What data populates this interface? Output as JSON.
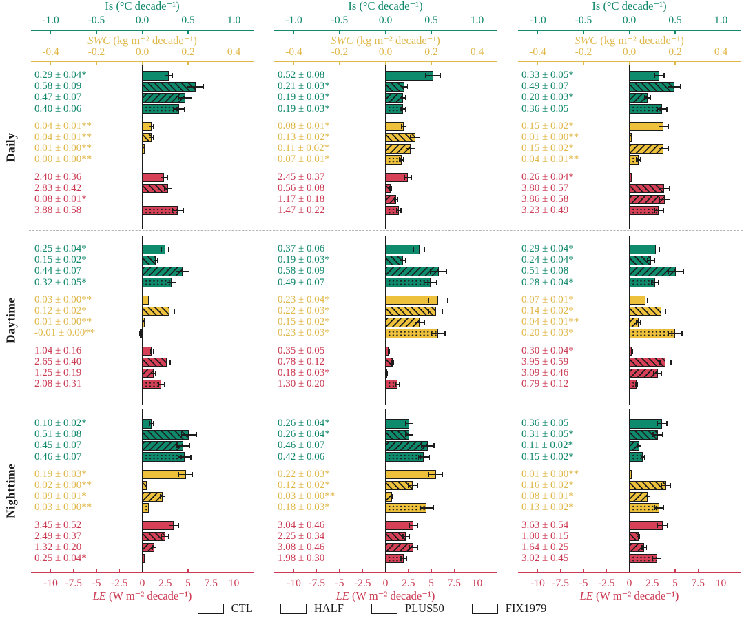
{
  "chart_data": {
    "type": "bar",
    "orientation": "horizontal",
    "grid": "3 rows x 3 columns of panels",
    "row_labels": [
      "Daily",
      "Daytime",
      "Nighttime"
    ],
    "legend": {
      "position": "bottom",
      "entries": [
        "CTL",
        "HALF",
        "PLUS50",
        "FIX1979"
      ],
      "hatches": {
        "CTL": "solid",
        "HALF": "forward-diagonal",
        "PLUS50": "backward-diagonal",
        "FIX1979": "dots"
      }
    },
    "value_label_format": "value ± error with significance stars",
    "axes": [
      {
        "key": "Is",
        "var": "Is",
        "italic": false,
        "unit": "(°C decade⁻¹)",
        "position": "top",
        "color": "#11886c",
        "bar_color": "#0e8b6d",
        "tick_labels": [
          "-1.0",
          "-0.5",
          "0.0",
          "0.5",
          "1.0"
        ],
        "tick_values": [
          -1.0,
          -0.5,
          0.0,
          0.5,
          1.0
        ],
        "scale_max": 1.0
      },
      {
        "key": "SWC",
        "var": "SWC",
        "italic": true,
        "unit": "(kg m⁻² decade⁻¹)",
        "position": "top",
        "color": "#e0b84a",
        "bar_color": "#edc13c",
        "tick_labels": [
          "-0.4",
          "-0.2",
          "0.0",
          "0.2",
          "0.4"
        ],
        "tick_values": [
          -0.4,
          -0.2,
          0.0,
          0.2,
          0.4
        ],
        "scale_max": 0.4
      },
      {
        "key": "LE",
        "var": "LE",
        "italic": true,
        "unit": "(W m⁻² decade⁻¹)",
        "position": "bottom",
        "color": "#cb3a53",
        "bar_color": "#d64158",
        "tick_labels": [
          "-10",
          "-7.5",
          "-5",
          "-2.5",
          "0",
          "2.5",
          "5",
          "7.5",
          "10"
        ],
        "tick_values": [
          -10,
          -7.5,
          -5,
          -2.5,
          0,
          2.5,
          5,
          7.5,
          10
        ],
        "scale_max": 10
      }
    ],
    "panels": [
      {
        "row": "Daily",
        "col": 1,
        "groups": {
          "Is": [
            [
              0.29,
              0.04,
              "*"
            ],
            [
              0.58,
              0.09,
              ""
            ],
            [
              0.47,
              0.07,
              ""
            ],
            [
              0.4,
              0.06,
              ""
            ]
          ],
          "SWC": [
            [
              0.04,
              0.01,
              "**"
            ],
            [
              0.04,
              0.01,
              "**"
            ],
            [
              0.01,
              0.0,
              "**"
            ],
            [
              0.0,
              0.0,
              "**"
            ]
          ],
          "LE": [
            [
              2.4,
              0.36,
              ""
            ],
            [
              2.83,
              0.42,
              ""
            ],
            [
              0.08,
              0.01,
              "*"
            ],
            [
              3.88,
              0.58,
              ""
            ]
          ]
        }
      },
      {
        "row": "Daily",
        "col": 2,
        "groups": {
          "Is": [
            [
              0.52,
              0.08,
              ""
            ],
            [
              0.21,
              0.03,
              "*"
            ],
            [
              0.19,
              0.03,
              "*"
            ],
            [
              0.19,
              0.03,
              "*"
            ]
          ],
          "SWC": [
            [
              0.08,
              0.01,
              "*"
            ],
            [
              0.13,
              0.02,
              "*"
            ],
            [
              0.11,
              0.02,
              "*"
            ],
            [
              0.07,
              0.01,
              "*"
            ]
          ],
          "LE": [
            [
              2.45,
              0.37,
              ""
            ],
            [
              0.56,
              0.08,
              ""
            ],
            [
              1.17,
              0.18,
              ""
            ],
            [
              1.47,
              0.22,
              ""
            ]
          ]
        }
      },
      {
        "row": "Daily",
        "col": 3,
        "groups": {
          "Is": [
            [
              0.33,
              0.05,
              "*"
            ],
            [
              0.49,
              0.07,
              ""
            ],
            [
              0.2,
              0.03,
              "*"
            ],
            [
              0.36,
              0.05,
              ""
            ]
          ],
          "SWC": [
            [
              0.15,
              0.02,
              "*"
            ],
            [
              0.01,
              0.0,
              "**"
            ],
            [
              0.15,
              0.02,
              "*"
            ],
            [
              0.04,
              0.01,
              "**"
            ]
          ],
          "LE": [
            [
              0.26,
              0.04,
              "*"
            ],
            [
              3.8,
              0.57,
              ""
            ],
            [
              3.86,
              0.58,
              ""
            ],
            [
              3.23,
              0.49,
              ""
            ]
          ]
        }
      },
      {
        "row": "Daytime",
        "col": 1,
        "groups": {
          "Is": [
            [
              0.25,
              0.04,
              "*"
            ],
            [
              0.15,
              0.02,
              "*"
            ],
            [
              0.44,
              0.07,
              ""
            ],
            [
              0.32,
              0.05,
              "*"
            ]
          ],
          "SWC": [
            [
              0.03,
              0.0,
              "**"
            ],
            [
              0.12,
              0.02,
              "*"
            ],
            [
              0.01,
              0.0,
              "**"
            ],
            [
              -0.01,
              0.0,
              "**"
            ]
          ],
          "LE": [
            [
              1.04,
              0.16,
              ""
            ],
            [
              2.65,
              0.4,
              ""
            ],
            [
              1.25,
              0.19,
              ""
            ],
            [
              2.08,
              0.31,
              ""
            ]
          ]
        }
      },
      {
        "row": "Daytime",
        "col": 2,
        "groups": {
          "Is": [
            [
              0.37,
              0.06,
              ""
            ],
            [
              0.19,
              0.03,
              "*"
            ],
            [
              0.58,
              0.09,
              ""
            ],
            [
              0.49,
              0.07,
              ""
            ]
          ],
          "SWC": [
            [
              0.23,
              0.04,
              "*"
            ],
            [
              0.22,
              0.03,
              "*"
            ],
            [
              0.15,
              0.02,
              "*"
            ],
            [
              0.23,
              0.03,
              "*"
            ]
          ],
          "LE": [
            [
              0.35,
              0.05,
              ""
            ],
            [
              0.78,
              0.12,
              ""
            ],
            [
              0.18,
              0.03,
              "*"
            ],
            [
              1.3,
              0.2,
              ""
            ]
          ]
        }
      },
      {
        "row": "Daytime",
        "col": 3,
        "groups": {
          "Is": [
            [
              0.29,
              0.04,
              "*"
            ],
            [
              0.24,
              0.04,
              "*"
            ],
            [
              0.51,
              0.08,
              ""
            ],
            [
              0.28,
              0.04,
              "*"
            ]
          ],
          "SWC": [
            [
              0.07,
              0.01,
              "*"
            ],
            [
              0.14,
              0.02,
              "*"
            ],
            [
              0.04,
              0.01,
              "**"
            ],
            [
              0.2,
              0.03,
              "*"
            ]
          ],
          "LE": [
            [
              0.3,
              0.04,
              "*"
            ],
            [
              3.95,
              0.59,
              ""
            ],
            [
              3.09,
              0.46,
              ""
            ],
            [
              0.79,
              0.12,
              ""
            ]
          ]
        }
      },
      {
        "row": "Nighttime",
        "col": 1,
        "groups": {
          "Is": [
            [
              0.1,
              0.02,
              "*"
            ],
            [
              0.51,
              0.08,
              ""
            ],
            [
              0.45,
              0.07,
              ""
            ],
            [
              0.46,
              0.07,
              ""
            ]
          ],
          "SWC": [
            [
              0.19,
              0.03,
              "*"
            ],
            [
              0.02,
              0.0,
              "**"
            ],
            [
              0.09,
              0.01,
              "*"
            ],
            [
              0.03,
              0.0,
              "**"
            ]
          ],
          "LE": [
            [
              3.45,
              0.52,
              ""
            ],
            [
              2.49,
              0.37,
              ""
            ],
            [
              1.32,
              0.2,
              ""
            ],
            [
              0.25,
              0.04,
              "*"
            ]
          ]
        }
      },
      {
        "row": "Nighttime",
        "col": 2,
        "groups": {
          "Is": [
            [
              0.26,
              0.04,
              "*"
            ],
            [
              0.26,
              0.04,
              "*"
            ],
            [
              0.46,
              0.07,
              ""
            ],
            [
              0.42,
              0.06,
              ""
            ]
          ],
          "SWC": [
            [
              0.22,
              0.03,
              "*"
            ],
            [
              0.12,
              0.02,
              "*"
            ],
            [
              0.03,
              0.0,
              "**"
            ],
            [
              0.18,
              0.03,
              "*"
            ]
          ],
          "LE": [
            [
              3.04,
              0.46,
              ""
            ],
            [
              2.25,
              0.34,
              ""
            ],
            [
              3.08,
              0.46,
              ""
            ],
            [
              1.98,
              0.3,
              ""
            ]
          ]
        }
      },
      {
        "row": "Nighttime",
        "col": 3,
        "groups": {
          "Is": [
            [
              0.36,
              0.05,
              ""
            ],
            [
              0.31,
              0.05,
              "*"
            ],
            [
              0.11,
              0.02,
              "*"
            ],
            [
              0.15,
              0.02,
              "*"
            ]
          ],
          "SWC": [
            [
              0.01,
              0.0,
              "**"
            ],
            [
              0.16,
              0.02,
              "*"
            ],
            [
              0.08,
              0.01,
              "*"
            ],
            [
              0.13,
              0.02,
              "*"
            ]
          ],
          "LE": [
            [
              3.63,
              0.54,
              ""
            ],
            [
              1.0,
              0.15,
              ""
            ],
            [
              1.64,
              0.25,
              ""
            ],
            [
              3.02,
              0.45,
              ""
            ]
          ]
        }
      }
    ]
  }
}
